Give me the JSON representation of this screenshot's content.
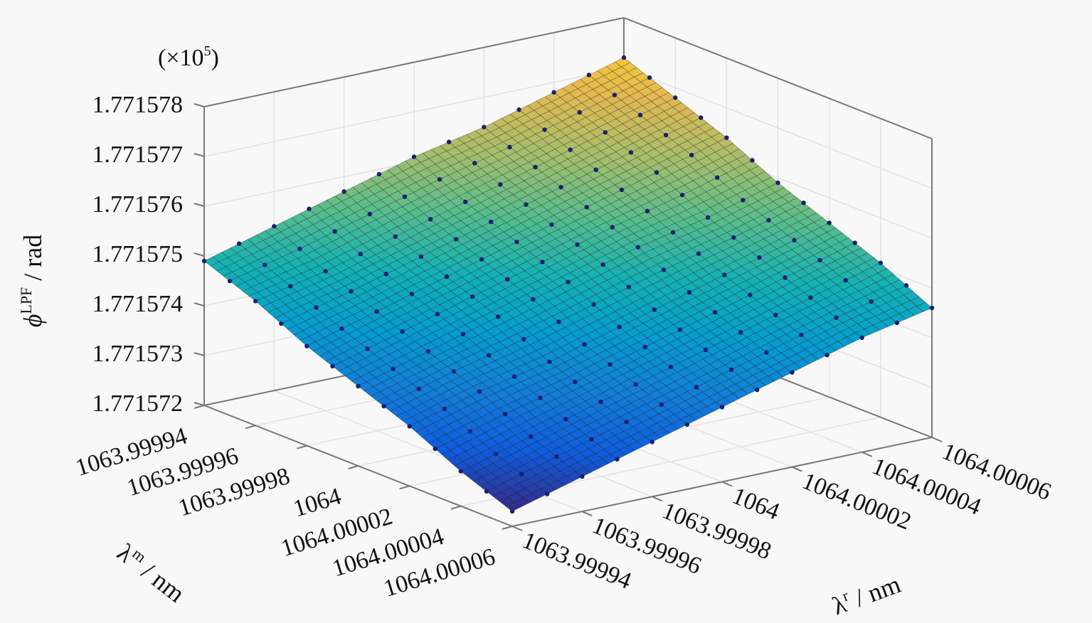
{
  "chart_data": {
    "type": "surface",
    "title": "",
    "multiplier_label": "(×10",
    "multiplier_exp": "5",
    "zlabel_symbol": "ϕ",
    "zlabel_sup": "LPF",
    "zlabel_unit": " / rad",
    "xlabel_symbol": "λ",
    "xlabel_sup": "m",
    "xlabel_unit": " / nm",
    "ylabel_symbol": "λ",
    "ylabel_sup": "r",
    "ylabel_unit": " / nm",
    "x_ticks": [
      "1063.99994",
      "1063.99996",
      "1063.99998",
      "1064",
      "1064.00002",
      "1064.00004",
      "1064.00006"
    ],
    "y_ticks": [
      "1063.99994",
      "1063.99996",
      "1063.99998",
      "1064",
      "1064.00002",
      "1064.00004",
      "1064.00006"
    ],
    "z_ticks": [
      "1.771578",
      "1.771577",
      "1.771576",
      "1.771575",
      "1.771574",
      "1.771573",
      "1.771572"
    ],
    "x_values": [
      1063.99994,
      1063.99996,
      1063.99998,
      1064,
      1064.00002,
      1064.00004,
      1064.00006
    ],
    "y_values": [
      1063.99994,
      1063.99996,
      1063.99998,
      1064,
      1064.00002,
      1064.00004,
      1064.00006
    ],
    "zlim": [
      1.771572,
      1.771578
    ],
    "z_values_note_rows": "rows = λm (x_values), columns = λr (y_values), in ×10^5 rad",
    "z_values": [
      [
        1.7715749,
        1.7715753,
        1.7715757,
        1.7715761,
        1.7715764,
        1.7715768,
        1.7715772
      ],
      [
        1.7715745,
        1.7715748,
        1.7715752,
        1.7715756,
        1.771576,
        1.7715764,
        1.7715768
      ],
      [
        1.771574,
        1.7715744,
        1.7715748,
        1.7715752,
        1.7715756,
        1.771576,
        1.7715764
      ],
      [
        1.7715736,
        1.771574,
        1.7715744,
        1.7715748,
        1.7715752,
        1.7715755,
        1.7715759
      ],
      [
        1.7715732,
        1.7715736,
        1.7715739,
        1.7715743,
        1.7715747,
        1.7715751,
        1.7715755
      ],
      [
        1.7715727,
        1.7715731,
        1.7715735,
        1.7715739,
        1.7715743,
        1.7715747,
        1.7715751
      ],
      [
        1.7715723,
        1.7715727,
        1.7715731,
        1.7715735,
        1.7715739,
        1.7715743,
        1.7715746
      ]
    ],
    "colormap": "parula",
    "marker_color": "#1a1f6e",
    "grid": true
  }
}
